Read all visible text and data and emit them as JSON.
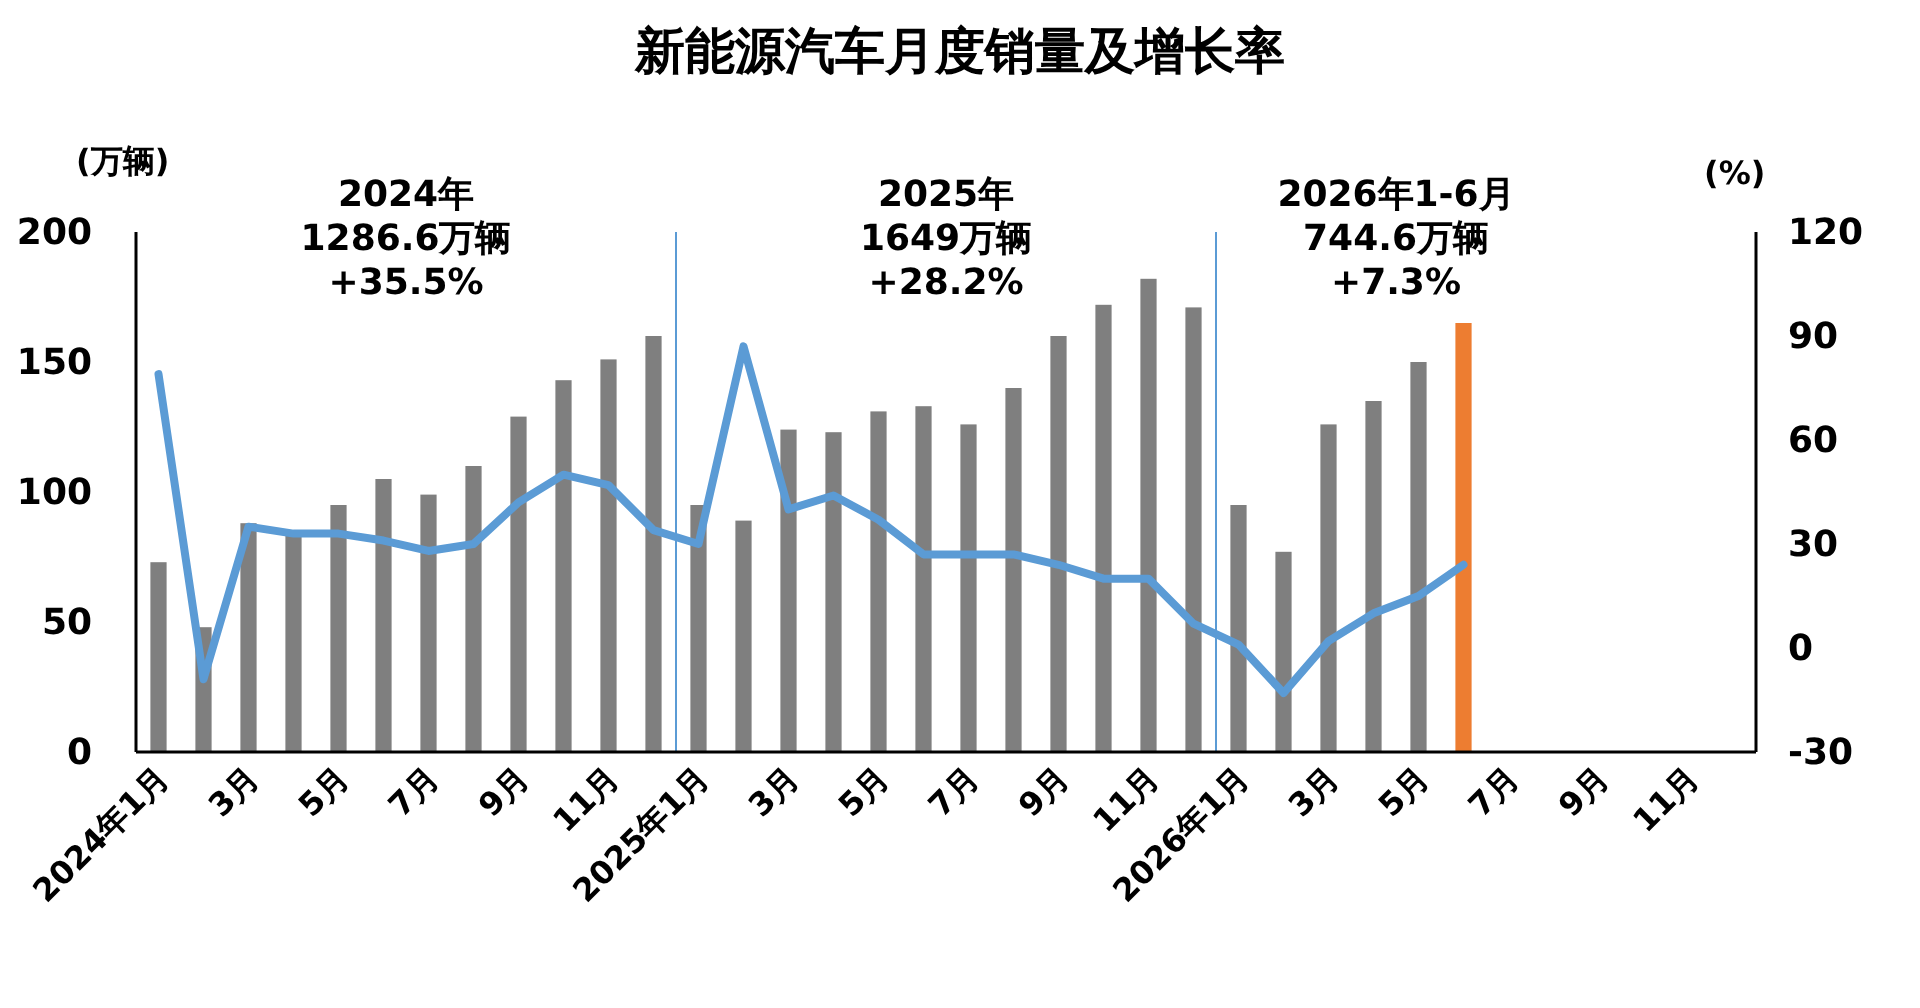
{
  "chart_data": {
    "type": "bar",
    "title": "新能源汽车月度销量及增长率",
    "ylabel": "(万辆)",
    "y2label": "(%)",
    "categories": [
      "2024年1月",
      null,
      "3月",
      null,
      "5月",
      null,
      "7月",
      null,
      "9月",
      null,
      "11月",
      null,
      "2025年1月",
      null,
      "3月",
      null,
      "5月",
      null,
      "7月",
      null,
      "9月",
      null,
      "11月",
      null,
      "2026年1月",
      null,
      "3月",
      null,
      "5月",
      null,
      "7月",
      null,
      "9月",
      null,
      "11月",
      null
    ],
    "series": [
      {
        "colors": [
          "#7f7f7f",
          "#7f7f7f",
          "#7f7f7f",
          "#7f7f7f",
          "#7f7f7f",
          "#7f7f7f",
          "#7f7f7f",
          "#7f7f7f",
          "#7f7f7f",
          "#7f7f7f",
          "#7f7f7f",
          "#7f7f7f",
          "#7f7f7f",
          "#7f7f7f",
          "#7f7f7f",
          "#7f7f7f",
          "#7f7f7f",
          "#7f7f7f",
          "#7f7f7f",
          "#7f7f7f",
          "#7f7f7f",
          "#7f7f7f",
          "#7f7f7f",
          "#7f7f7f",
          "#7f7f7f",
          "#7f7f7f",
          "#7f7f7f",
          "#7f7f7f",
          "#7f7f7f",
          "#ed7d31",
          null,
          null,
          null,
          null,
          null,
          null
        ],
        "values": [
          73,
          48,
          88,
          85,
          95,
          105,
          99,
          110,
          129,
          143,
          151,
          160,
          95,
          89,
          124,
          123,
          131,
          133,
          126,
          140,
          160,
          172,
          182,
          171,
          95,
          77,
          126,
          135,
          150,
          165,
          null,
          null,
          null,
          null,
          null,
          null
        ]
      },
      {
        "type": "line",
        "axis": "y2",
        "color": "#5b9bd5",
        "values": [
          79,
          -9,
          35,
          33,
          33,
          31,
          28,
          30,
          42,
          50,
          47,
          34,
          30,
          87,
          40,
          44,
          37,
          27,
          27,
          27,
          24,
          20,
          20,
          7,
          1,
          -13,
          2,
          10,
          15,
          24,
          null,
          null,
          null,
          null,
          null,
          null
        ]
      }
    ],
    "ylim": [
      0,
      200
    ],
    "yticks": [
      0,
      50,
      100,
      150,
      200
    ],
    "y2lim": [
      -30,
      120
    ],
    "y2ticks": [
      -30,
      0,
      30,
      60,
      90,
      120
    ],
    "annotations": [
      "2024年\n1286.6万辆\n+35.5%",
      "2025年\n1649万辆\n+28.2%",
      "2026年1-6月\n744.6万辆\n+7.3%"
    ],
    "grid": false
  }
}
